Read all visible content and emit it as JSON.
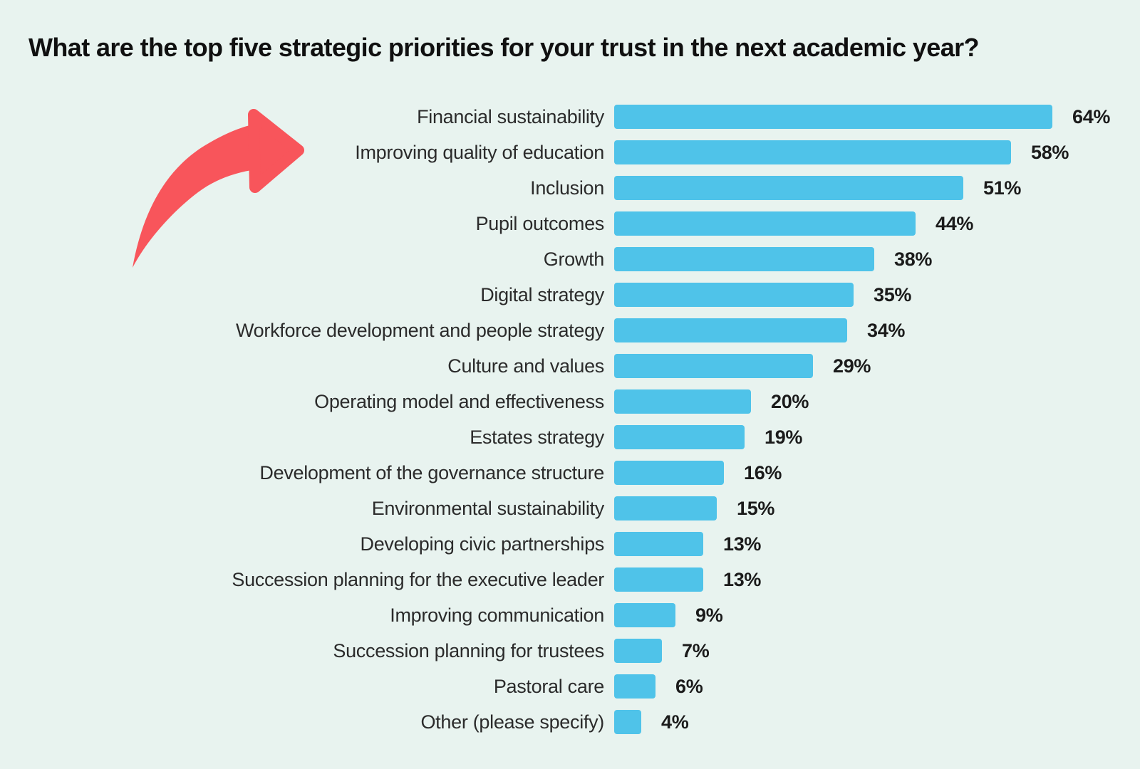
{
  "title": "What are the top five strategic priorities for your trust in the next academic year?",
  "colors": {
    "background": "#e8f3ef",
    "bar": "#4fc3e9",
    "arrow": "#f8555b",
    "title_text": "#101010",
    "label_text": "#2b2b2b",
    "value_text": "#1b1b1b"
  },
  "annotations": {
    "arrow": "red curved arrow pointing to the top priorities"
  },
  "chart_data": {
    "type": "bar",
    "orientation": "horizontal",
    "title": "What are the top five strategic priorities for your trust in the next academic year?",
    "categories": [
      "Financial sustainability",
      "Improving quality of education",
      "Inclusion",
      "Pupil outcomes",
      "Growth",
      "Digital strategy",
      "Workforce development and people strategy",
      "Culture and values",
      "Operating model and effectiveness",
      "Estates strategy",
      "Development of the governance structure",
      "Environmental sustainability",
      "Developing civic partnerships",
      "Succession planning for the executive leader",
      "Improving communication",
      "Succession planning for trustees",
      "Pastoral care",
      "Other (please specify)"
    ],
    "values": [
      64,
      58,
      51,
      44,
      38,
      35,
      34,
      29,
      20,
      19,
      16,
      15,
      13,
      13,
      9,
      7,
      6,
      4
    ],
    "value_suffix": "%",
    "xlabel": "",
    "ylabel": "",
    "xlim": [
      0,
      64
    ],
    "grid": false,
    "legend": false
  }
}
